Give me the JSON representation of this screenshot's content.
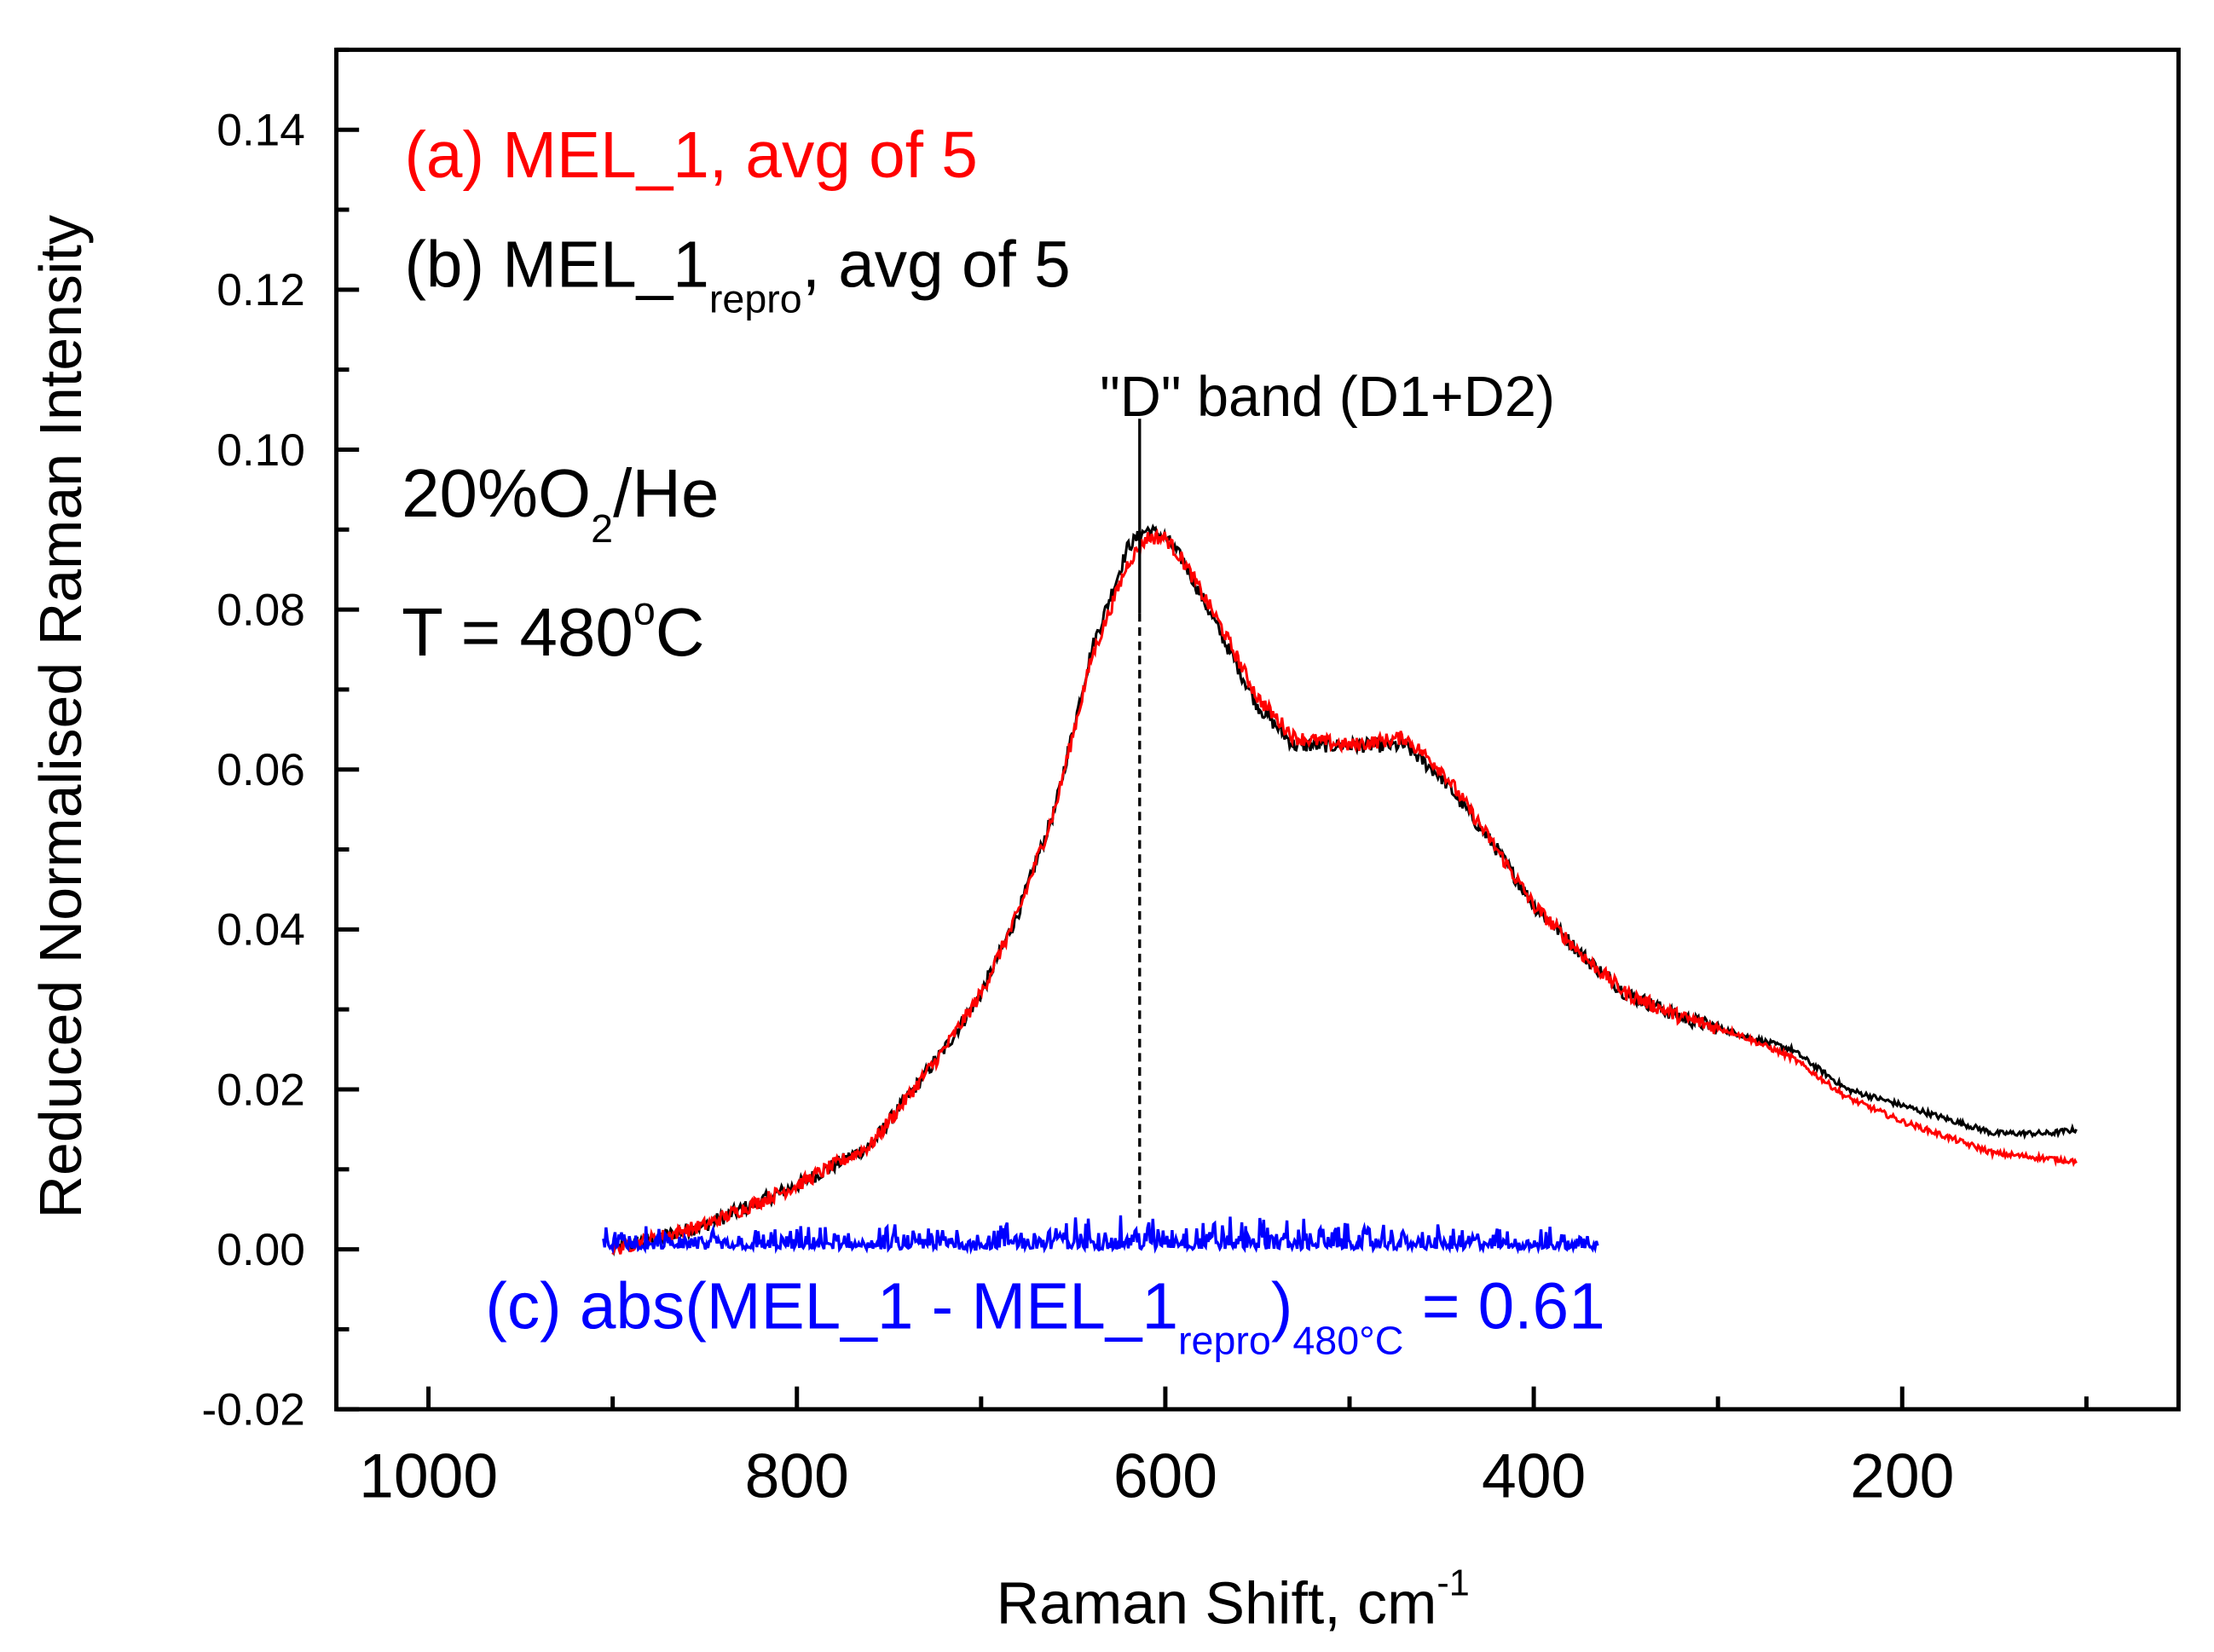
{
  "chart_data": {
    "type": "line",
    "title": "",
    "xlabel": "Raman Shift, cm",
    "xlabel_sup": "-1",
    "ylabel": "Reduced Normalised Raman Intensity",
    "xlim": [
      1050,
      50
    ],
    "ylim": [
      -0.02,
      0.15
    ],
    "x_reversed": true,
    "x_ticks": [
      1000,
      800,
      600,
      400,
      200
    ],
    "x_tick_labels": [
      "1000",
      "800",
      "600",
      "400",
      "200"
    ],
    "y_ticks": [
      -0.02,
      0.0,
      0.02,
      0.04,
      0.06,
      0.08,
      0.1,
      0.12,
      0.14
    ],
    "y_tick_labels": [
      "-0.02",
      "0.00",
      "0.02",
      "0.04",
      "0.06",
      "0.08",
      "0.10",
      "0.12",
      "0.14"
    ],
    "grid": false,
    "series": [
      {
        "name": "(a) MEL_1, avg of 5",
        "color": "#ff0000",
        "x": [
          900,
          850,
          800,
          760,
          720,
          700,
          680,
          660,
          640,
          620,
          610,
          600,
          590,
          570,
          550,
          530,
          500,
          470,
          450,
          420,
          400,
          370,
          350,
          320,
          290,
          260,
          230,
          200,
          150,
          105
        ],
        "y": [
          0.0,
          0.003,
          0.008,
          0.013,
          0.025,
          0.032,
          0.042,
          0.055,
          0.074,
          0.086,
          0.089,
          0.089,
          0.086,
          0.078,
          0.069,
          0.064,
          0.063,
          0.064,
          0.06,
          0.05,
          0.043,
          0.036,
          0.032,
          0.029,
          0.027,
          0.024,
          0.019,
          0.016,
          0.012,
          0.011
        ]
      },
      {
        "name": "(b) MEL_1repro, avg of 5",
        "color": "#000000",
        "x": [
          900,
          850,
          800,
          760,
          720,
          700,
          680,
          660,
          640,
          620,
          610,
          600,
          590,
          570,
          550,
          530,
          500,
          470,
          450,
          420,
          400,
          370,
          350,
          320,
          290,
          260,
          230,
          200,
          150,
          120,
          105
        ],
        "y": [
          0.0,
          0.003,
          0.008,
          0.013,
          0.025,
          0.032,
          0.042,
          0.055,
          0.075,
          0.088,
          0.09,
          0.089,
          0.086,
          0.077,
          0.068,
          0.063,
          0.063,
          0.063,
          0.059,
          0.05,
          0.043,
          0.036,
          0.032,
          0.029,
          0.027,
          0.025,
          0.02,
          0.018,
          0.0145,
          0.0145,
          0.015
        ]
      },
      {
        "name": "(c) abs(MEL_1 - MEL_1repro)480°C = 0.61",
        "color": "#0000ff",
        "x": [
          905,
          365
        ],
        "y": [
          0.001,
          0.001
        ],
        "noise_max": 0.005
      }
    ],
    "annotations": {
      "legend_a": "(a) MEL_1, avg of 5",
      "legend_b_main": "(b) MEL_1",
      "legend_b_sub": "repro",
      "legend_b_tail": ", avg of 5",
      "d_band": "\"D\" band (D1+D2)",
      "d_band_position": 613,
      "gas_main": "20%O",
      "gas_sub": "2",
      "gas_tail": "/He",
      "temp_main": "T = 480",
      "temp_sup": "o",
      "temp_tail": "C",
      "c_main": "(c) abs(MEL_1 - MEL_1",
      "c_sub1": "repro",
      "c_paren": ")",
      "c_sub2": "480°C",
      "c_tail": " = 0.61"
    }
  }
}
